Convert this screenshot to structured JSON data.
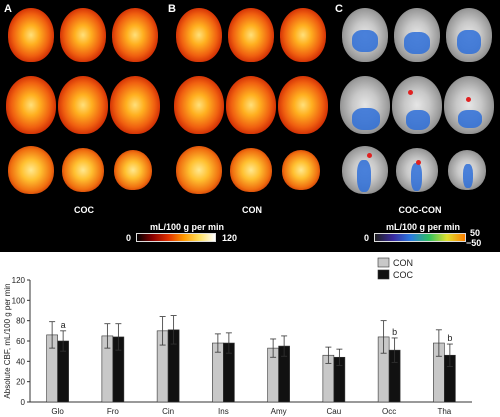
{
  "brain_figure": {
    "panels": [
      {
        "letter": "A",
        "group": "COC"
      },
      {
        "letter": "B",
        "group": "CON"
      },
      {
        "letter": "C",
        "group": "COC-CON"
      }
    ],
    "colorbar_hot": {
      "unit": "mL/100 g per min",
      "min": "0",
      "max": "120",
      "colors": [
        "#000000",
        "#8a0000",
        "#e03000",
        "#ff9a00",
        "#ffe060",
        "#ffffff"
      ]
    },
    "colorbar_diff": {
      "unit": "mL/100 g per min",
      "min": "0",
      "max_pos": "50",
      "max_neg": "−50",
      "colors": [
        "#202020",
        "#3a2aa0",
        "#2a7be0",
        "#30c060",
        "#e0e030",
        "#ff8000"
      ]
    }
  },
  "chart_data": {
    "type": "bar",
    "ylabel": "Absolute CBF, mL/100 g per min",
    "ylim": [
      0,
      120
    ],
    "yticks": [
      "0",
      "20",
      "40",
      "60",
      "80",
      "100",
      "120"
    ],
    "categories": [
      "Glo",
      "Fro",
      "Cin",
      "Ins",
      "Amy",
      "Cau",
      "Occ",
      "Tha"
    ],
    "series": [
      {
        "name": "CON",
        "color": "#c8c8c8",
        "values": [
          66,
          65,
          70,
          58,
          53,
          46,
          64,
          58
        ],
        "errors": [
          13,
          12,
          14,
          9,
          9,
          8,
          16,
          13
        ]
      },
      {
        "name": "COC",
        "color": "#111111",
        "values": [
          60,
          64,
          71,
          58,
          55,
          44,
          51,
          46
        ],
        "errors": [
          10,
          13,
          14,
          10,
          10,
          8,
          12,
          11
        ]
      }
    ],
    "annotations": [
      {
        "category": "Glo",
        "text": "a"
      },
      {
        "category": "Occ",
        "text": "b"
      },
      {
        "category": "Tha",
        "text": "b"
      }
    ]
  }
}
